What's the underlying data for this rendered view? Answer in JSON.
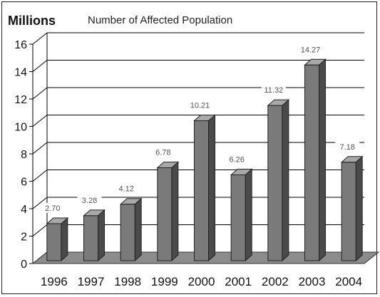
{
  "chart_data": {
    "type": "bar",
    "title": "Number of Affected Population",
    "ylabel": "Millions",
    "xlabel": "",
    "categories": [
      "1996",
      "1997",
      "1998",
      "1999",
      "2000",
      "2001",
      "2002",
      "2003",
      "2004"
    ],
    "values": [
      2.7,
      3.28,
      4.12,
      6.78,
      10.21,
      6.26,
      11.32,
      14.27,
      7.18
    ],
    "value_labels": [
      "2.70",
      "3.28",
      "4.12",
      "6.78",
      "10.21",
      "6.26",
      "11.32",
      "14.27",
      "7.18"
    ],
    "ylim": [
      0,
      16
    ],
    "yticks": [
      "0",
      "2",
      "4",
      "6",
      "8",
      "10",
      "12",
      "14",
      "16"
    ],
    "style": "3d-column",
    "grid": true,
    "legend": "none",
    "colors": {
      "bar_front": "#7a7a7a",
      "bar_side": "#4a4a4a",
      "bar_top": "#a8a8a8",
      "floor": "#8c8c8c",
      "grid": "#000000"
    }
  }
}
